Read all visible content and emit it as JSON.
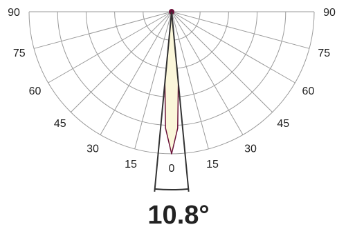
{
  "chart_data": {
    "type": "polar",
    "title": "",
    "angle_unit": "degrees",
    "angle_range": [
      0,
      90
    ],
    "tick_labels_left": [
      "90",
      "75",
      "60",
      "45",
      "30",
      "15"
    ],
    "tick_labels_right": [
      "90",
      "75",
      "60",
      "45",
      "30",
      "15"
    ],
    "tick_label_center": "0",
    "grid": true,
    "series": [
      {
        "points": [
          {
            "angle": -5.4,
            "intensity": 0.5
          },
          {
            "angle": -3,
            "intensity": 0.82
          },
          {
            "angle": 0,
            "intensity": 1.0
          },
          {
            "angle": 3,
            "intensity": 0.82
          },
          {
            "angle": 5.4,
            "intensity": 0.5
          }
        ]
      }
    ],
    "beam_angle_label": "10.8°",
    "beam_angle": 10.8,
    "colors": {
      "grid": "#9a9a9a",
      "beam_outline": "#6a1038",
      "beam_fill": "#fbf7da",
      "beam_lines": "#333333"
    }
  }
}
